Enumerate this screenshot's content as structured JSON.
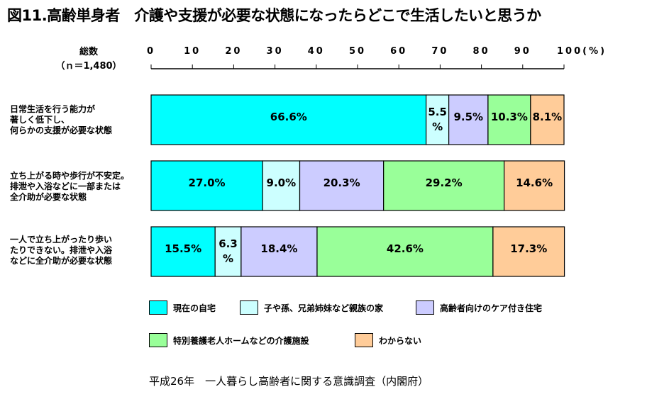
{
  "title": "図11.高齢単身者　介護や支援が必要な状態になったらどこで生活したいと思うか",
  "total_label": [
    "総数",
    "（ｎ＝1,480）"
  ],
  "source": "平成26年　一人暮らし高齢者に関する意識調査（内閣府）",
  "colors": {
    "home": "#00FFFF",
    "family": "#CCFFFF",
    "care_housing": "#CCCCFF",
    "facility": "#99FF99",
    "unknown": "#FFCC99"
  },
  "chart_data": {
    "type": "bar",
    "orientation": "horizontal",
    "stacked": true,
    "xlim": [
      0,
      100
    ],
    "xticks": [
      "0",
      "10",
      "20",
      "30",
      "40",
      "50",
      "60",
      "70",
      "80",
      "90",
      "100(%)"
    ],
    "categories": [
      [
        "日常生活を行う能力が",
        "著しく低下し、",
        "何らかの支援が必要な状態"
      ],
      [
        "立ち上がる時や歩行が不安定。",
        "排泄や入浴などに一部または",
        "全介助が必要な状態"
      ],
      [
        "一人で立ち上がったり歩い",
        "たりできない。排泄や入浴",
        "などに全介助が必要な状態"
      ]
    ],
    "series": [
      {
        "name": "現在の自宅",
        "color_key": "home",
        "values": [
          66.6,
          27.0,
          15.5
        ]
      },
      {
        "name": "子や孫、兄弟姉妹など親族の家",
        "color_key": "family",
        "values": [
          5.5,
          9.0,
          6.3
        ]
      },
      {
        "name": "高齢者向けのケア付き住宅",
        "color_key": "care_housing",
        "values": [
          9.5,
          20.3,
          18.4
        ]
      },
      {
        "name": "特別養護老人ホームなどの介護施設",
        "color_key": "facility",
        "values": [
          10.3,
          29.2,
          42.6
        ]
      },
      {
        "name": "わからない",
        "color_key": "unknown",
        "values": [
          8.1,
          14.6,
          17.3
        ]
      }
    ],
    "data_labels": [
      [
        "66.6%",
        "5.5%",
        "9.5%",
        "10.3%",
        "8.1%"
      ],
      [
        "27.0%",
        "9.0%",
        "20.3%",
        "29.2%",
        "14.6%"
      ],
      [
        "15.5%",
        "6.3%",
        "18.4%",
        "42.6%",
        "17.3%"
      ]
    ]
  }
}
